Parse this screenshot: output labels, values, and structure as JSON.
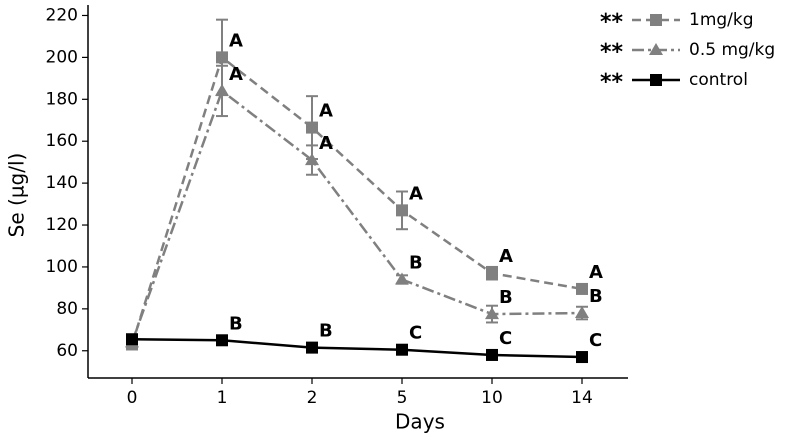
{
  "chart_data": {
    "type": "line",
    "x_label": "Days",
    "y_label": "Se (µg/l)",
    "categories": [
      "0",
      "1",
      "2",
      "5",
      "10",
      "14"
    ],
    "ylim": [
      47,
      225
    ],
    "yticks": [
      60,
      80,
      100,
      120,
      140,
      160,
      180,
      200,
      220
    ],
    "legend": "upper right",
    "series": [
      {
        "name": "1mg/kg",
        "prefix": "**",
        "color": "#808080",
        "dash": "dashed",
        "marker": "square",
        "values": [
          63,
          200,
          166.5,
          127,
          97,
          89.5
        ],
        "errors": [
          null,
          18,
          15,
          9,
          3,
          2
        ],
        "labels": [
          null,
          "A",
          "A",
          "A",
          "A",
          "A"
        ]
      },
      {
        "name": "0.5 mg/kg",
        "prefix": "**",
        "color": "#808080",
        "dash": "dashdot",
        "marker": "triangle",
        "values": [
          64,
          184,
          151,
          94,
          77.5,
          78
        ],
        "errors": [
          null,
          12,
          7,
          2,
          4,
          3
        ],
        "labels": [
          null,
          "A",
          "A",
          "B",
          "B",
          "B"
        ]
      },
      {
        "name": "control",
        "prefix": "**",
        "color": "#000000",
        "dash": "solid",
        "marker": "square",
        "values": [
          65.5,
          65,
          61.5,
          60.5,
          58,
          57
        ],
        "errors": [
          null,
          null,
          null,
          null,
          null,
          null
        ],
        "labels": [
          null,
          "B",
          "B",
          "C",
          "C",
          "C"
        ]
      }
    ]
  }
}
